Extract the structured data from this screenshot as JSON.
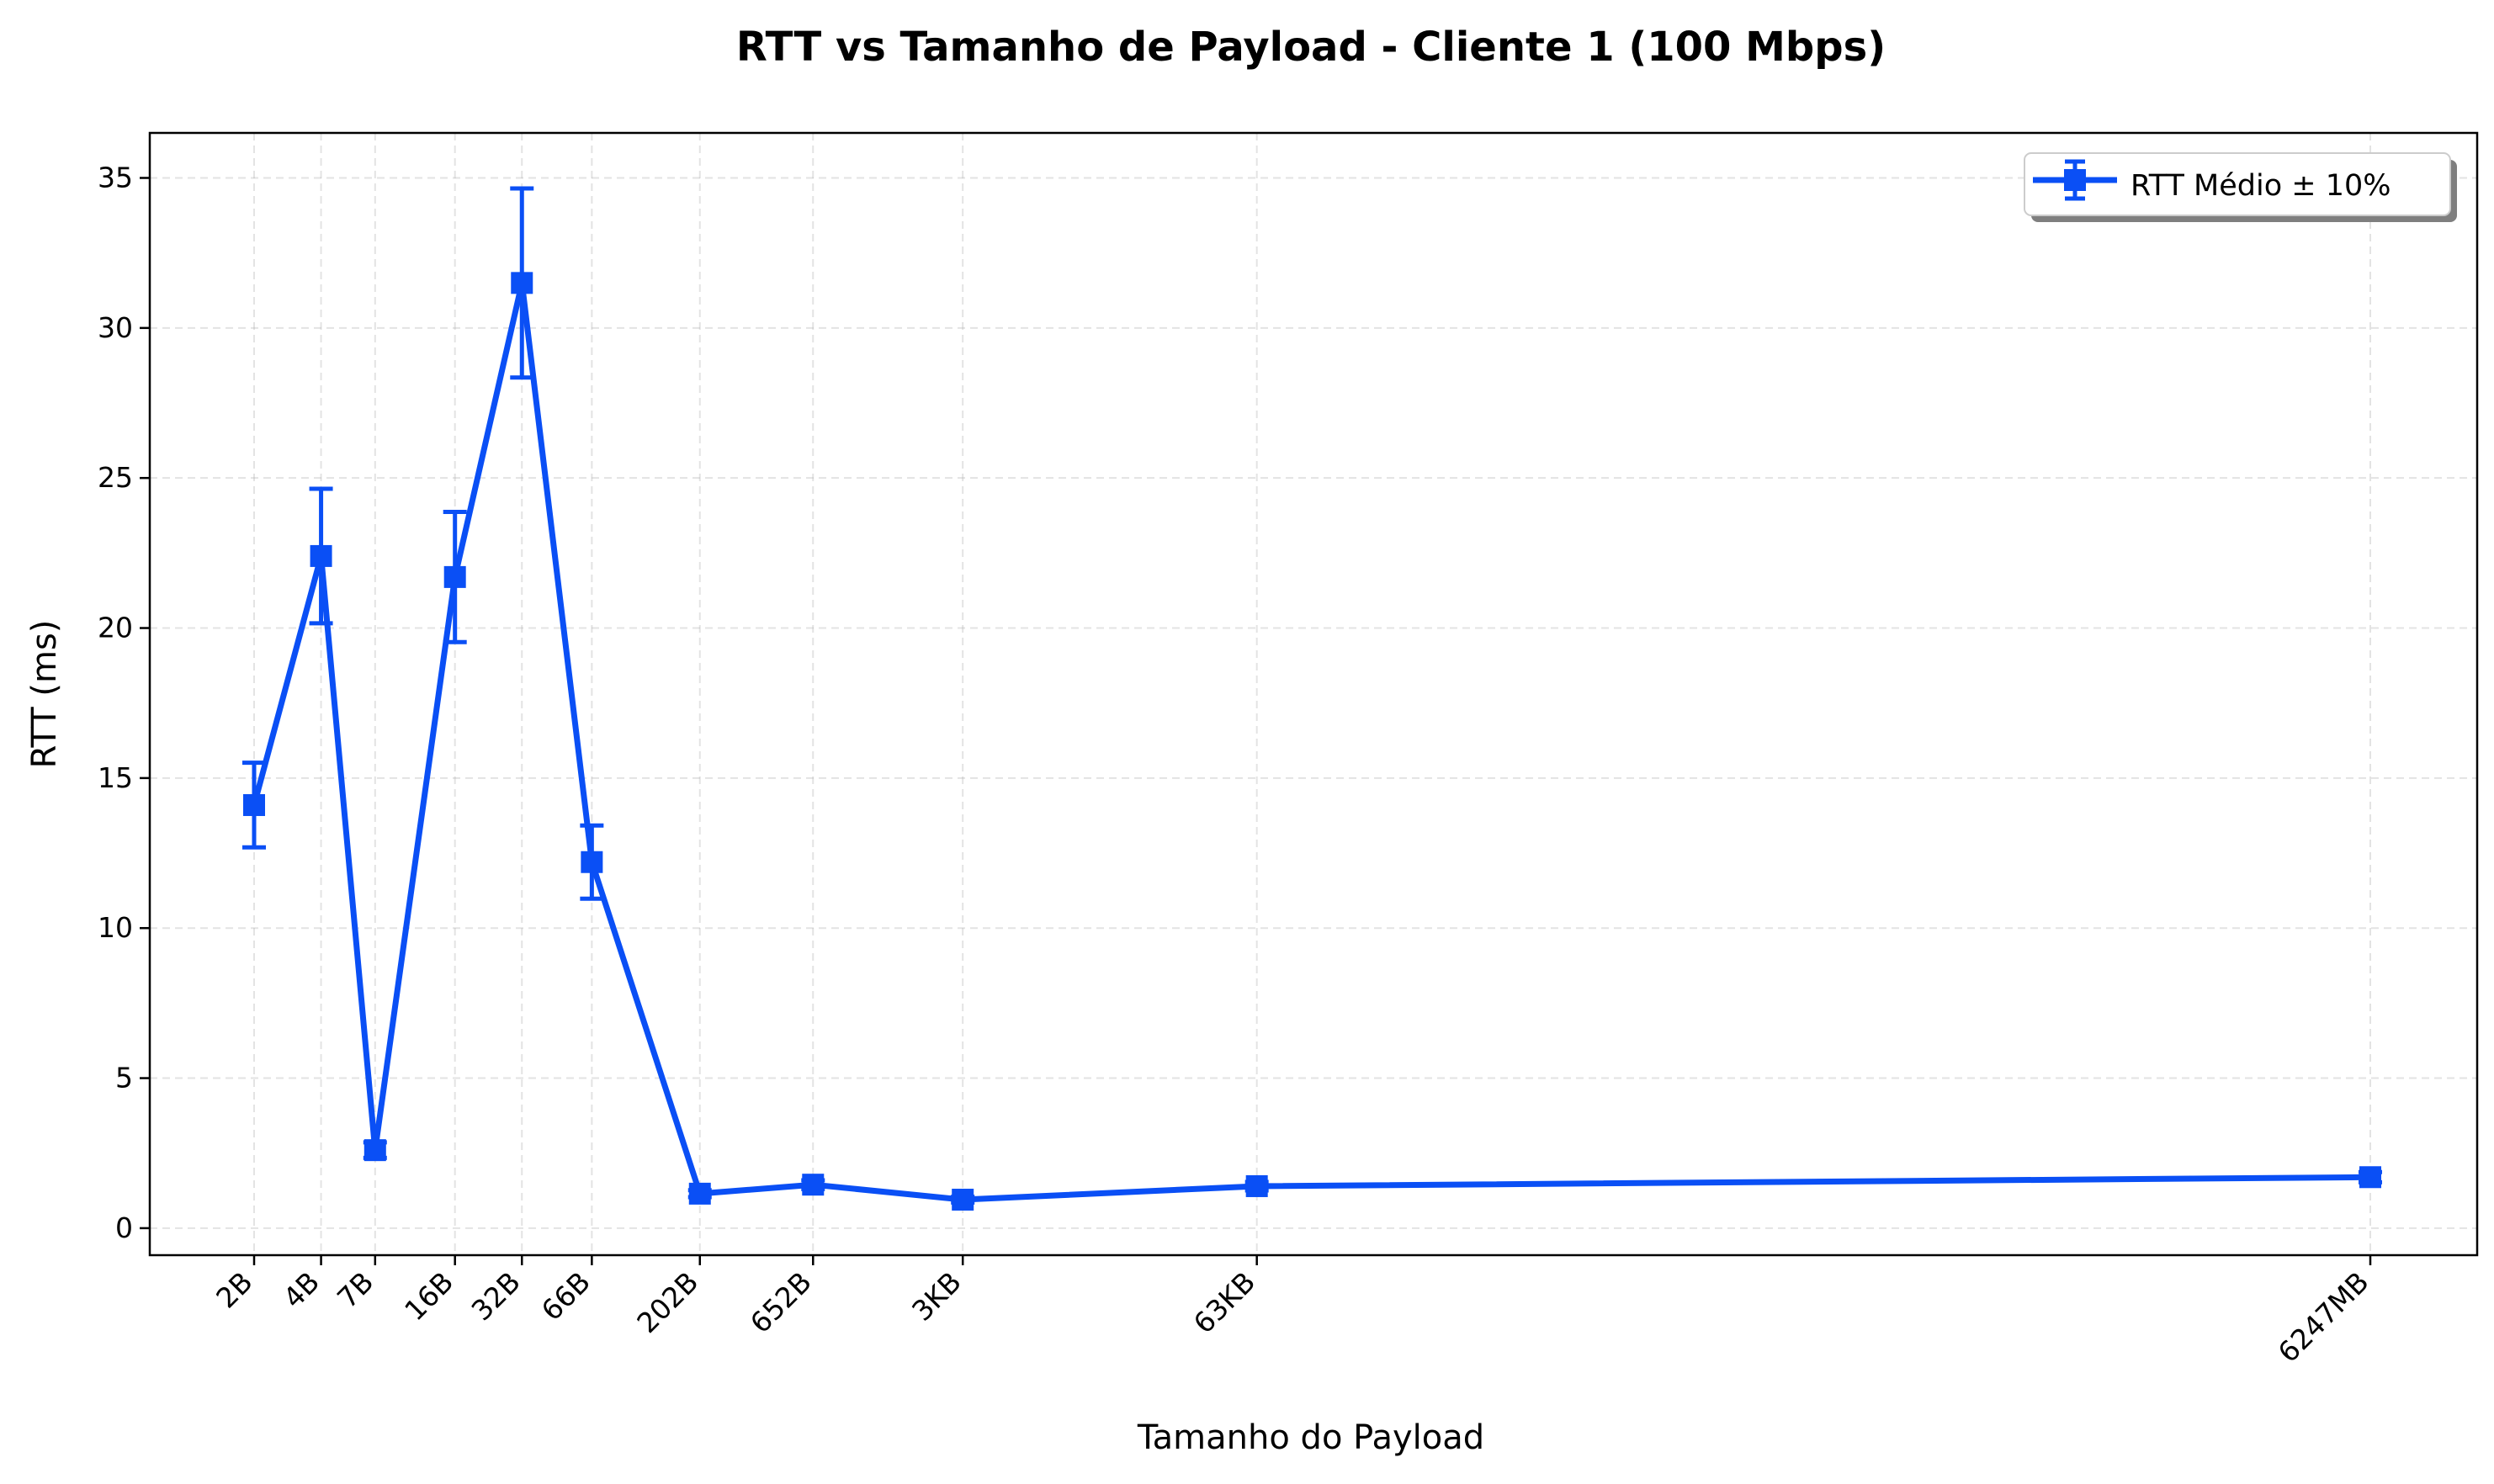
{
  "chart_data": {
    "type": "line",
    "title": "RTT vs Tamanho de Payload - Cliente 1 (100 Mbps)",
    "xlabel": "Tamanho do Payload",
    "ylabel": "RTT (ms)",
    "x_axis_scale": "log",
    "categories": [
      "2B",
      "4B",
      "7B",
      "16B",
      "32B",
      "66B",
      "202B",
      "652B",
      "3KB",
      "63KB",
      "6247MB"
    ],
    "ylim": [
      -0.9,
      36.5
    ],
    "yticks": [
      0,
      5,
      10,
      15,
      20,
      25,
      30,
      35
    ],
    "grid": true,
    "legend_position": "top-right",
    "series": [
      {
        "name": "RTT Médio ± 10%",
        "color": "#0a4ff5",
        "marker": "square",
        "error": "±10%",
        "values": [
          14.1,
          22.4,
          2.6,
          21.7,
          31.5,
          12.2,
          1.15,
          1.45,
          0.95,
          1.4,
          1.7
        ]
      }
    ]
  }
}
